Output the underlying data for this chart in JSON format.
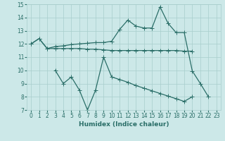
{
  "xlabel": "Humidex (Indice chaleur)",
  "x": [
    0,
    1,
    2,
    3,
    4,
    5,
    6,
    7,
    8,
    9,
    10,
    11,
    12,
    13,
    14,
    15,
    16,
    17,
    18,
    19,
    20,
    21,
    22,
    23
  ],
  "line_top": [
    12.0,
    12.4,
    11.65,
    11.8,
    11.85,
    11.95,
    12.0,
    12.05,
    12.1,
    12.1,
    12.2,
    13.1,
    13.8,
    13.35,
    13.2,
    13.2,
    14.8,
    13.55,
    12.85,
    12.85,
    9.95,
    9.0,
    8.0,
    null
  ],
  "line_mid": [
    12.0,
    12.4,
    11.65,
    11.65,
    11.65,
    11.65,
    11.65,
    11.6,
    11.6,
    11.55,
    11.5,
    11.5,
    11.5,
    11.5,
    11.5,
    11.5,
    11.5,
    11.5,
    11.5,
    11.45,
    11.45,
    null,
    null,
    null
  ],
  "line_low": [
    null,
    null,
    null,
    10.0,
    9.0,
    9.5,
    8.5,
    7.0,
    8.5,
    11.0,
    9.5,
    9.3,
    9.1,
    8.85,
    8.65,
    8.45,
    8.25,
    8.05,
    7.85,
    7.65,
    8.0,
    null,
    null,
    null
  ],
  "bg_color": "#cce8e8",
  "line_color": "#2a6e68",
  "grid_color": "#a8cecc",
  "xlim": [
    -0.5,
    23.5
  ],
  "ylim": [
    7,
    15
  ],
  "yticks": [
    7,
    8,
    9,
    10,
    11,
    12,
    13,
    14,
    15
  ],
  "xticks": [
    0,
    1,
    2,
    3,
    4,
    5,
    6,
    7,
    8,
    9,
    10,
    11,
    12,
    13,
    14,
    15,
    16,
    17,
    18,
    19,
    20,
    21,
    22,
    23
  ],
  "tick_fontsize": 5.5,
  "xlabel_fontsize": 6.5
}
